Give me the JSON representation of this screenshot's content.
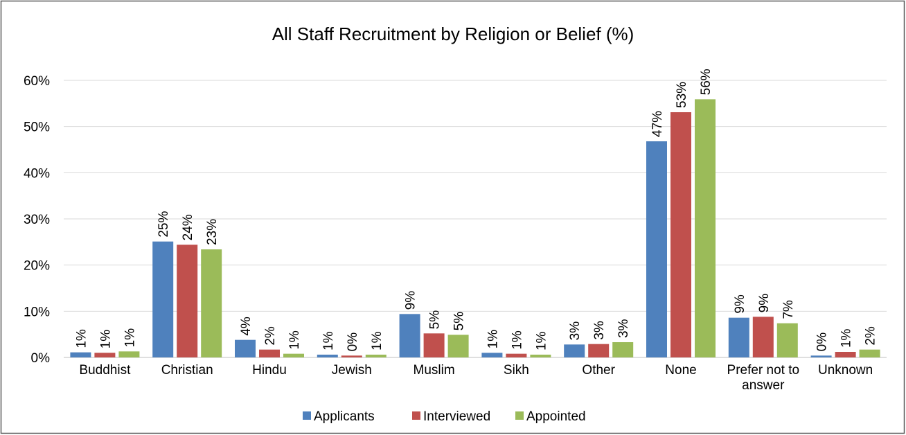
{
  "chart_data": {
    "type": "bar",
    "title": "All Staff Recruitment by Religion or Belief (%)",
    "categories": [
      "Buddhist",
      "Christian",
      "Hindu",
      "Jewish",
      "Muslim",
      "Sikh",
      "Other",
      "None",
      "Prefer not to answer",
      "Unknown"
    ],
    "series": [
      {
        "name": "Applicants",
        "color": "#4f81bd",
        "values": [
          1.1,
          25.1,
          3.8,
          0.6,
          9.4,
          1.0,
          2.8,
          46.8,
          8.6,
          0.4
        ],
        "value_labels": [
          "1%",
          "25%",
          "4%",
          "1%",
          "9%",
          "1%",
          "3%",
          "47%",
          "9%",
          "0%"
        ]
      },
      {
        "name": "Interviewed",
        "color": "#c0504d",
        "values": [
          1.0,
          24.4,
          1.7,
          0.4,
          5.2,
          0.8,
          2.9,
          53.1,
          8.8,
          1.2
        ],
        "value_labels": [
          "1%",
          "24%",
          "2%",
          "0%",
          "5%",
          "1%",
          "3%",
          "53%",
          "9%",
          "1%"
        ]
      },
      {
        "name": "Appointed",
        "color": "#9bbb59",
        "values": [
          1.3,
          23.4,
          0.8,
          0.6,
          4.9,
          0.6,
          3.3,
          55.9,
          7.4,
          1.7
        ],
        "value_labels": [
          "1%",
          "23%",
          "1%",
          "1%",
          "5%",
          "1%",
          "3%",
          "56%",
          "7%",
          "2%"
        ]
      }
    ],
    "ylim": [
      0,
      60
    ],
    "yticks": [
      {
        "value": 0,
        "label": "0%"
      },
      {
        "value": 10,
        "label": "10%"
      },
      {
        "value": 20,
        "label": "20%"
      },
      {
        "value": 30,
        "label": "30%"
      },
      {
        "value": 40,
        "label": "40%"
      },
      {
        "value": 50,
        "label": "50%"
      },
      {
        "value": 60,
        "label": "60%"
      }
    ],
    "grid": true,
    "legend": "bottom"
  }
}
